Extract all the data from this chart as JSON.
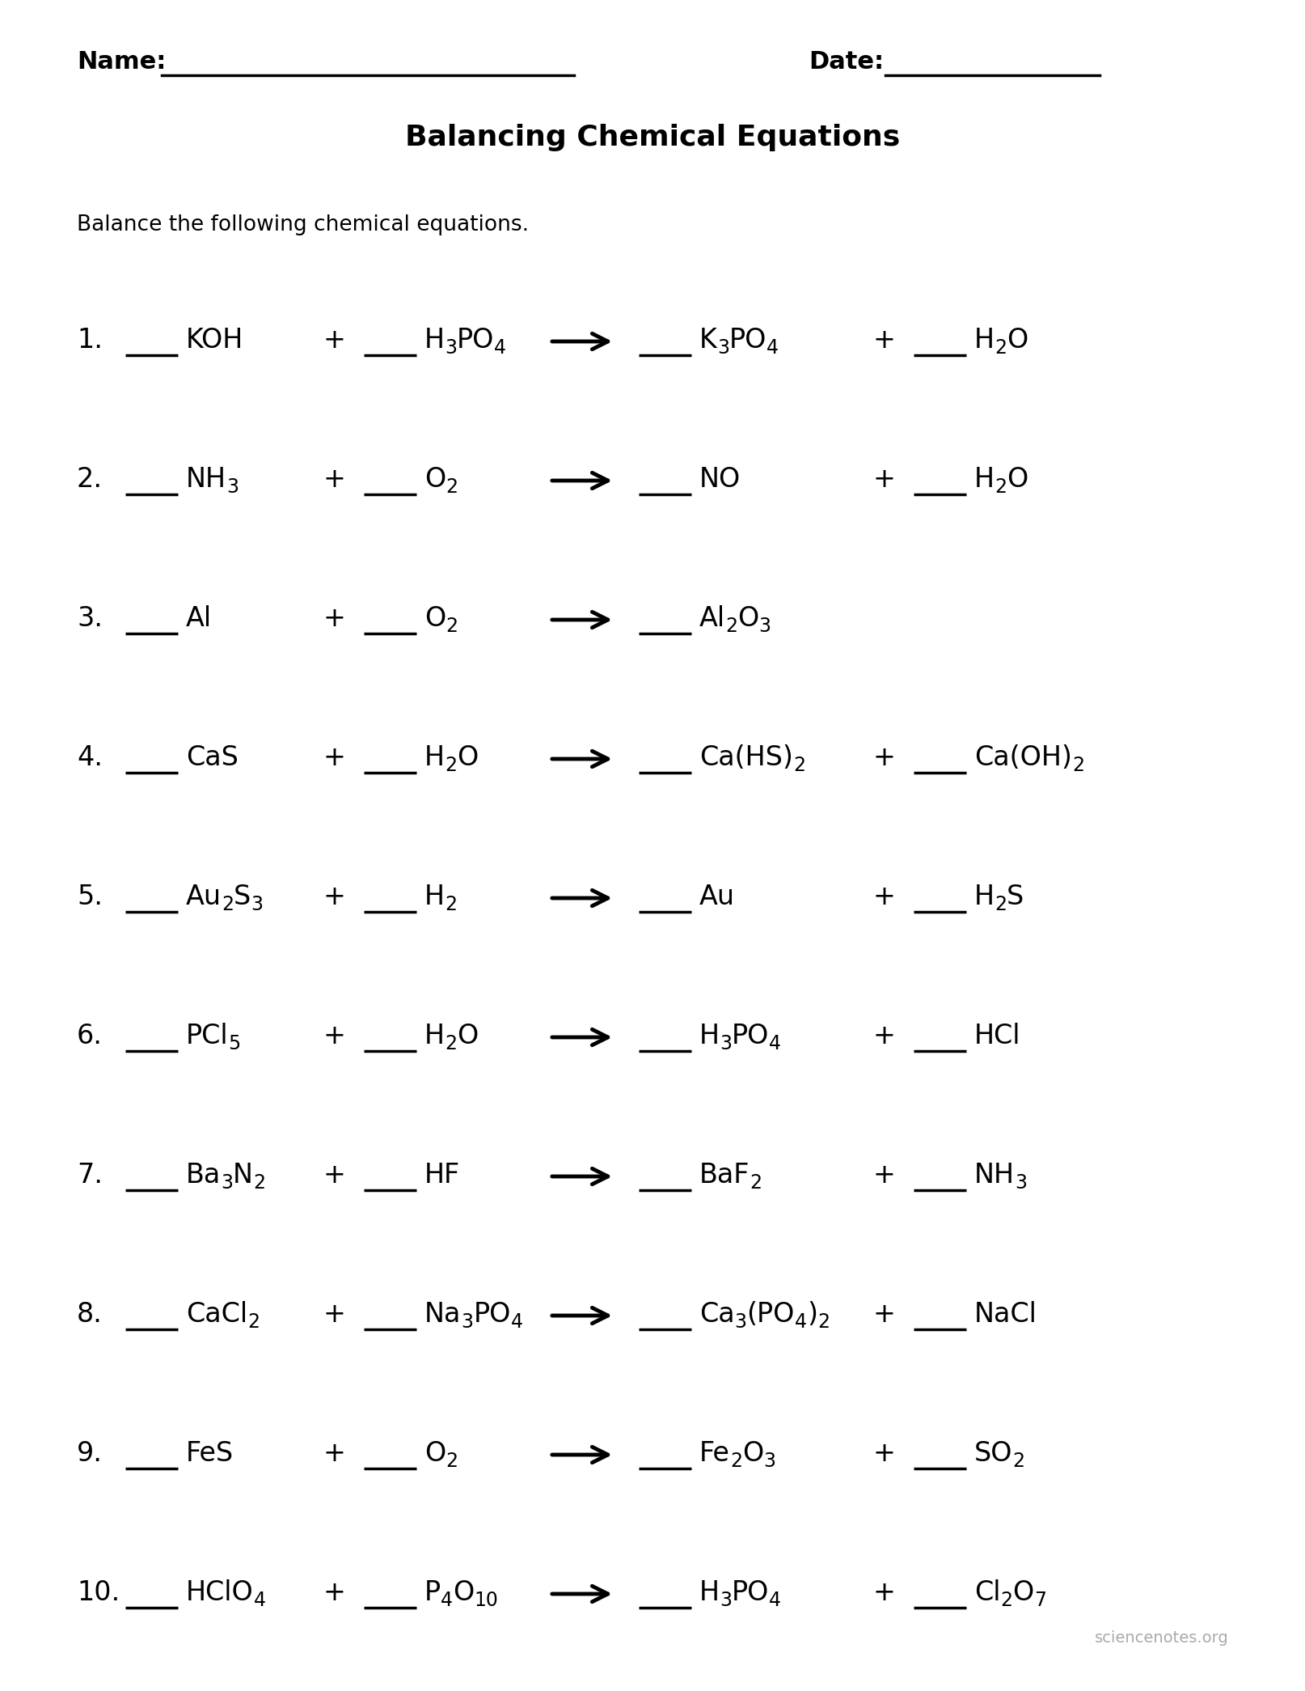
{
  "title": "Balancing Chemical Equations",
  "subtitle": "Balance the following chemical equations.",
  "bg_color": "#ffffff",
  "footer": "sciencenotes.org",
  "equations": [
    {
      "num": "1.",
      "r1": [
        [
          "KOH",
          false
        ]
      ],
      "r2": [
        [
          "H",
          false
        ],
        [
          "3",
          true
        ],
        [
          "PO",
          false
        ],
        [
          "4",
          true
        ]
      ],
      "p1": [
        [
          "K",
          false
        ],
        [
          "3",
          true
        ],
        [
          "PO",
          false
        ],
        [
          "4",
          true
        ]
      ],
      "p2": [
        [
          "H",
          false
        ],
        [
          "2",
          true
        ],
        [
          "O",
          false
        ]
      ]
    },
    {
      "num": "2.",
      "r1": [
        [
          "NH",
          false
        ],
        [
          "3",
          true
        ]
      ],
      "r2": [
        [
          "O",
          false
        ],
        [
          "2",
          true
        ]
      ],
      "p1": [
        [
          "NO",
          false
        ]
      ],
      "p2": [
        [
          "H",
          false
        ],
        [
          "2",
          true
        ],
        [
          "O",
          false
        ]
      ]
    },
    {
      "num": "3.",
      "r1": [
        [
          "Al",
          false
        ]
      ],
      "r2": [
        [
          "O",
          false
        ],
        [
          "2",
          true
        ]
      ],
      "p1": [
        [
          "Al",
          false
        ],
        [
          "2",
          true
        ],
        [
          "O",
          false
        ],
        [
          "3",
          true
        ]
      ],
      "p2": null
    },
    {
      "num": "4.",
      "r1": [
        [
          "CaS",
          false
        ]
      ],
      "r2": [
        [
          "H",
          false
        ],
        [
          "2",
          true
        ],
        [
          "O",
          false
        ]
      ],
      "p1": [
        [
          "Ca(HS)",
          false
        ],
        [
          "2",
          true
        ]
      ],
      "p2": [
        [
          "Ca(OH)",
          false
        ],
        [
          "2",
          true
        ]
      ]
    },
    {
      "num": "5.",
      "r1": [
        [
          "Au",
          false
        ],
        [
          "2",
          true
        ],
        [
          "S",
          false
        ],
        [
          "3",
          true
        ]
      ],
      "r2": [
        [
          "H",
          false
        ],
        [
          "2",
          true
        ]
      ],
      "p1": [
        [
          "Au",
          false
        ]
      ],
      "p2": [
        [
          "H",
          false
        ],
        [
          "2",
          true
        ],
        [
          "S",
          false
        ]
      ]
    },
    {
      "num": "6.",
      "r1": [
        [
          "PCl",
          false
        ],
        [
          "5",
          true
        ]
      ],
      "r2": [
        [
          "H",
          false
        ],
        [
          "2",
          true
        ],
        [
          "O",
          false
        ]
      ],
      "p1": [
        [
          "H",
          false
        ],
        [
          "3",
          true
        ],
        [
          "PO",
          false
        ],
        [
          "4",
          true
        ]
      ],
      "p2": [
        [
          "HCl",
          false
        ]
      ]
    },
    {
      "num": "7.",
      "r1": [
        [
          "Ba",
          false
        ],
        [
          "3",
          true
        ],
        [
          "N",
          false
        ],
        [
          "2",
          true
        ]
      ],
      "r2": [
        [
          "HF",
          false
        ]
      ],
      "p1": [
        [
          "BaF",
          false
        ],
        [
          "2",
          true
        ]
      ],
      "p2": [
        [
          "NH",
          false
        ],
        [
          "3",
          true
        ]
      ]
    },
    {
      "num": "8.",
      "r1": [
        [
          "CaCl",
          false
        ],
        [
          "2",
          true
        ]
      ],
      "r2": [
        [
          "Na",
          false
        ],
        [
          "3",
          true
        ],
        [
          "PO",
          false
        ],
        [
          "4",
          true
        ]
      ],
      "p1": [
        [
          "Ca",
          false
        ],
        [
          "3",
          true
        ],
        [
          "(PO",
          false
        ],
        [
          "4",
          true
        ],
        [
          ")",
          false
        ],
        [
          "2",
          true
        ]
      ],
      "p2": [
        [
          "NaCl",
          false
        ]
      ]
    },
    {
      "num": "9.",
      "r1": [
        [
          "FeS",
          false
        ]
      ],
      "r2": [
        [
          "O",
          false
        ],
        [
          "2",
          true
        ]
      ],
      "p1": [
        [
          "Fe",
          false
        ],
        [
          "2",
          true
        ],
        [
          "O",
          false
        ],
        [
          "3",
          true
        ]
      ],
      "p2": [
        [
          "SO",
          false
        ],
        [
          "2",
          true
        ]
      ]
    },
    {
      "num": "10.",
      "r1": [
        [
          "HClO",
          false
        ],
        [
          "4",
          true
        ]
      ],
      "r2": [
        [
          "P",
          false
        ],
        [
          "4",
          true
        ],
        [
          "O",
          false
        ],
        [
          "10",
          true
        ]
      ],
      "p1": [
        [
          "H",
          false
        ],
        [
          "3",
          true
        ],
        [
          "PO",
          false
        ],
        [
          "4",
          true
        ]
      ],
      "p2": [
        [
          "Cl",
          false
        ],
        [
          "2",
          true
        ],
        [
          "O",
          false
        ],
        [
          "7",
          true
        ]
      ]
    }
  ]
}
